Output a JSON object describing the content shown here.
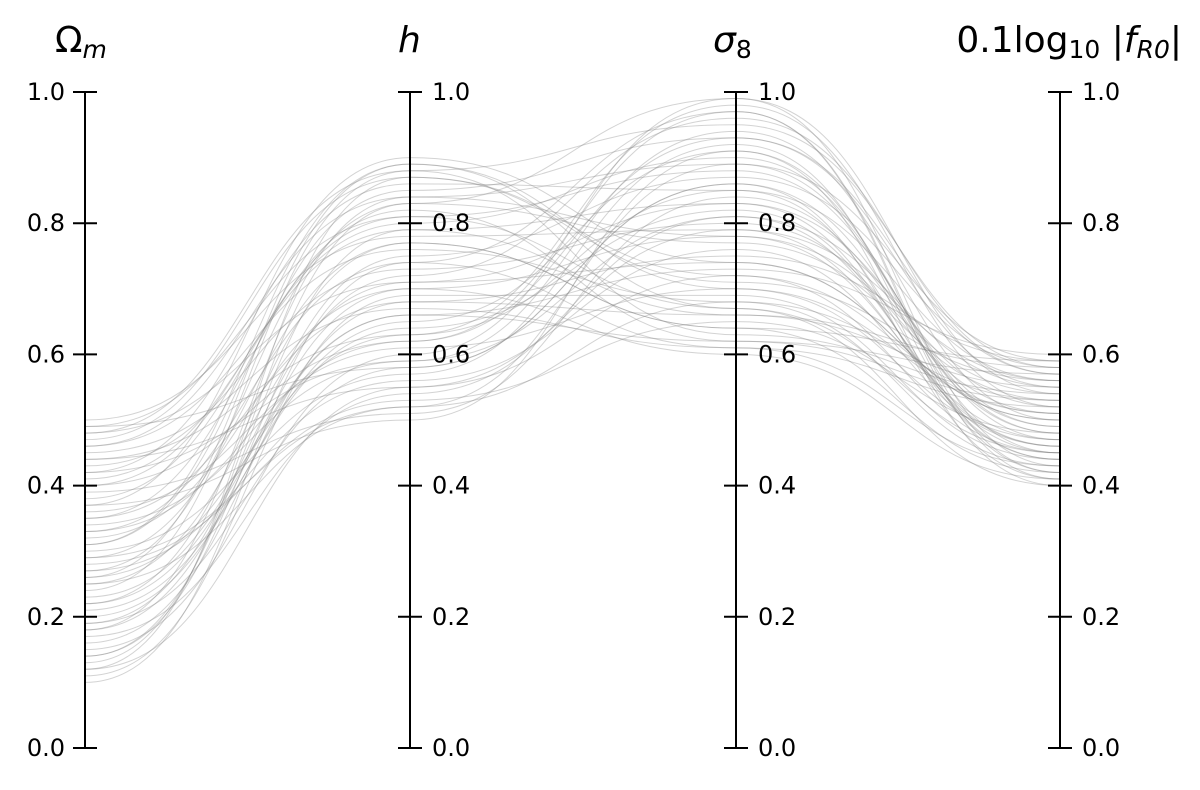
{
  "chart_data": {
    "type": "parallel",
    "color": "#808080",
    "ylim": [
      0,
      1
    ],
    "yticks": [
      {
        "value": 0,
        "label": "0.0"
      },
      0.2,
      0.4,
      0.6,
      0.8,
      {
        "value": 1,
        "label": "1.0"
      }
    ],
    "axes": [
      {
        "label": [
          {
            "text": "Ω",
            "style": "normal"
          },
          {
            "text": "m",
            "style": "sub-italic"
          }
        ]
      },
      {
        "label": [
          {
            "text": "h",
            "style": "italic"
          }
        ]
      },
      {
        "label": [
          {
            "text": "σ",
            "style": "italic"
          },
          {
            "text": "8",
            "style": "sub"
          }
        ]
      },
      {
        "label": [
          {
            "text": "0.1log",
            "style": "normal"
          },
          {
            "text": "10",
            "style": "sub"
          },
          {
            "text": " |",
            "style": "normal"
          },
          {
            "text": "f",
            "style": "italic"
          },
          {
            "text": "R0",
            "style": "sub-italic"
          },
          {
            "text": "|",
            "style": "normal"
          }
        ]
      }
    ],
    "lines": [
      [
        0.12,
        0.55,
        0.72,
        0.45
      ],
      [
        0.48,
        0.88,
        0.95,
        0.58
      ],
      [
        0.25,
        0.71,
        0.83,
        0.52
      ],
      [
        0.33,
        0.62,
        0.97,
        0.41
      ],
      [
        0.41,
        0.79,
        0.66,
        0.55
      ],
      [
        0.18,
        0.84,
        0.78,
        0.47
      ],
      [
        0.29,
        0.52,
        0.89,
        0.59
      ],
      [
        0.45,
        0.67,
        0.61,
        0.43
      ],
      [
        0.37,
        0.9,
        0.74,
        0.5
      ],
      [
        0.15,
        0.6,
        0.99,
        0.54
      ],
      [
        0.22,
        0.77,
        0.64,
        0.42
      ],
      [
        0.49,
        0.58,
        0.86,
        0.48
      ],
      [
        0.31,
        0.85,
        0.93,
        0.57
      ],
      [
        0.11,
        0.69,
        0.69,
        0.44
      ],
      [
        0.43,
        0.73,
        0.8,
        0.51
      ],
      [
        0.27,
        0.56,
        0.76,
        0.46
      ],
      [
        0.35,
        0.82,
        0.62,
        0.53
      ],
      [
        0.2,
        0.65,
        0.91,
        0.4
      ],
      [
        0.47,
        0.87,
        0.71,
        0.56
      ],
      [
        0.39,
        0.51,
        0.84,
        0.49
      ],
      [
        0.14,
        0.75,
        0.87,
        0.58
      ],
      [
        0.26,
        0.89,
        0.67,
        0.45
      ],
      [
        0.44,
        0.63,
        0.98,
        0.52
      ],
      [
        0.32,
        0.7,
        0.6,
        0.41
      ],
      [
        0.17,
        0.54,
        0.81,
        0.55
      ],
      [
        0.4,
        0.8,
        0.9,
        0.47
      ],
      [
        0.23,
        0.66,
        0.73,
        0.6
      ],
      [
        0.46,
        0.76,
        0.68,
        0.43
      ],
      [
        0.34,
        0.59,
        0.94,
        0.5
      ],
      [
        0.13,
        0.83,
        0.77,
        0.53
      ],
      [
        0.28,
        0.53,
        0.65,
        0.48
      ],
      [
        0.42,
        0.86,
        0.85,
        0.44
      ],
      [
        0.19,
        0.72,
        0.96,
        0.57
      ],
      [
        0.36,
        0.61,
        0.7,
        0.51
      ],
      [
        0.5,
        0.78,
        0.79,
        0.46
      ],
      [
        0.24,
        0.88,
        0.63,
        0.54
      ],
      [
        0.3,
        0.57,
        0.92,
        0.42
      ],
      [
        0.16,
        0.68,
        0.75,
        0.59
      ],
      [
        0.38,
        0.81,
        0.88,
        0.49
      ],
      [
        0.21,
        0.64,
        0.82,
        0.45
      ],
      [
        0.1,
        0.74,
        0.61,
        0.52
      ],
      [
        0.44,
        0.55,
        0.79,
        0.56
      ],
      [
        0.27,
        0.83,
        0.99,
        0.43
      ],
      [
        0.35,
        0.68,
        0.66,
        0.58
      ],
      [
        0.19,
        0.58,
        0.86,
        0.41
      ],
      [
        0.48,
        0.71,
        0.74,
        0.5
      ],
      [
        0.31,
        0.89,
        0.7,
        0.47
      ],
      [
        0.4,
        0.62,
        0.93,
        0.55
      ],
      [
        0.14,
        0.79,
        0.83,
        0.44
      ],
      [
        0.25,
        0.52,
        0.68,
        0.53
      ],
      [
        0.46,
        0.84,
        0.89,
        0.48
      ],
      [
        0.22,
        0.66,
        0.62,
        0.57
      ],
      [
        0.33,
        0.74,
        0.97,
        0.42
      ],
      [
        0.12,
        0.87,
        0.72,
        0.51
      ],
      [
        0.42,
        0.59,
        0.81,
        0.46
      ],
      [
        0.29,
        0.77,
        0.64,
        0.59
      ],
      [
        0.37,
        0.5,
        0.91,
        0.45
      ],
      [
        0.18,
        0.7,
        0.78,
        0.54
      ],
      [
        0.49,
        0.81,
        0.67,
        0.4
      ],
      [
        0.26,
        0.63,
        0.85,
        0.56
      ]
    ]
  }
}
